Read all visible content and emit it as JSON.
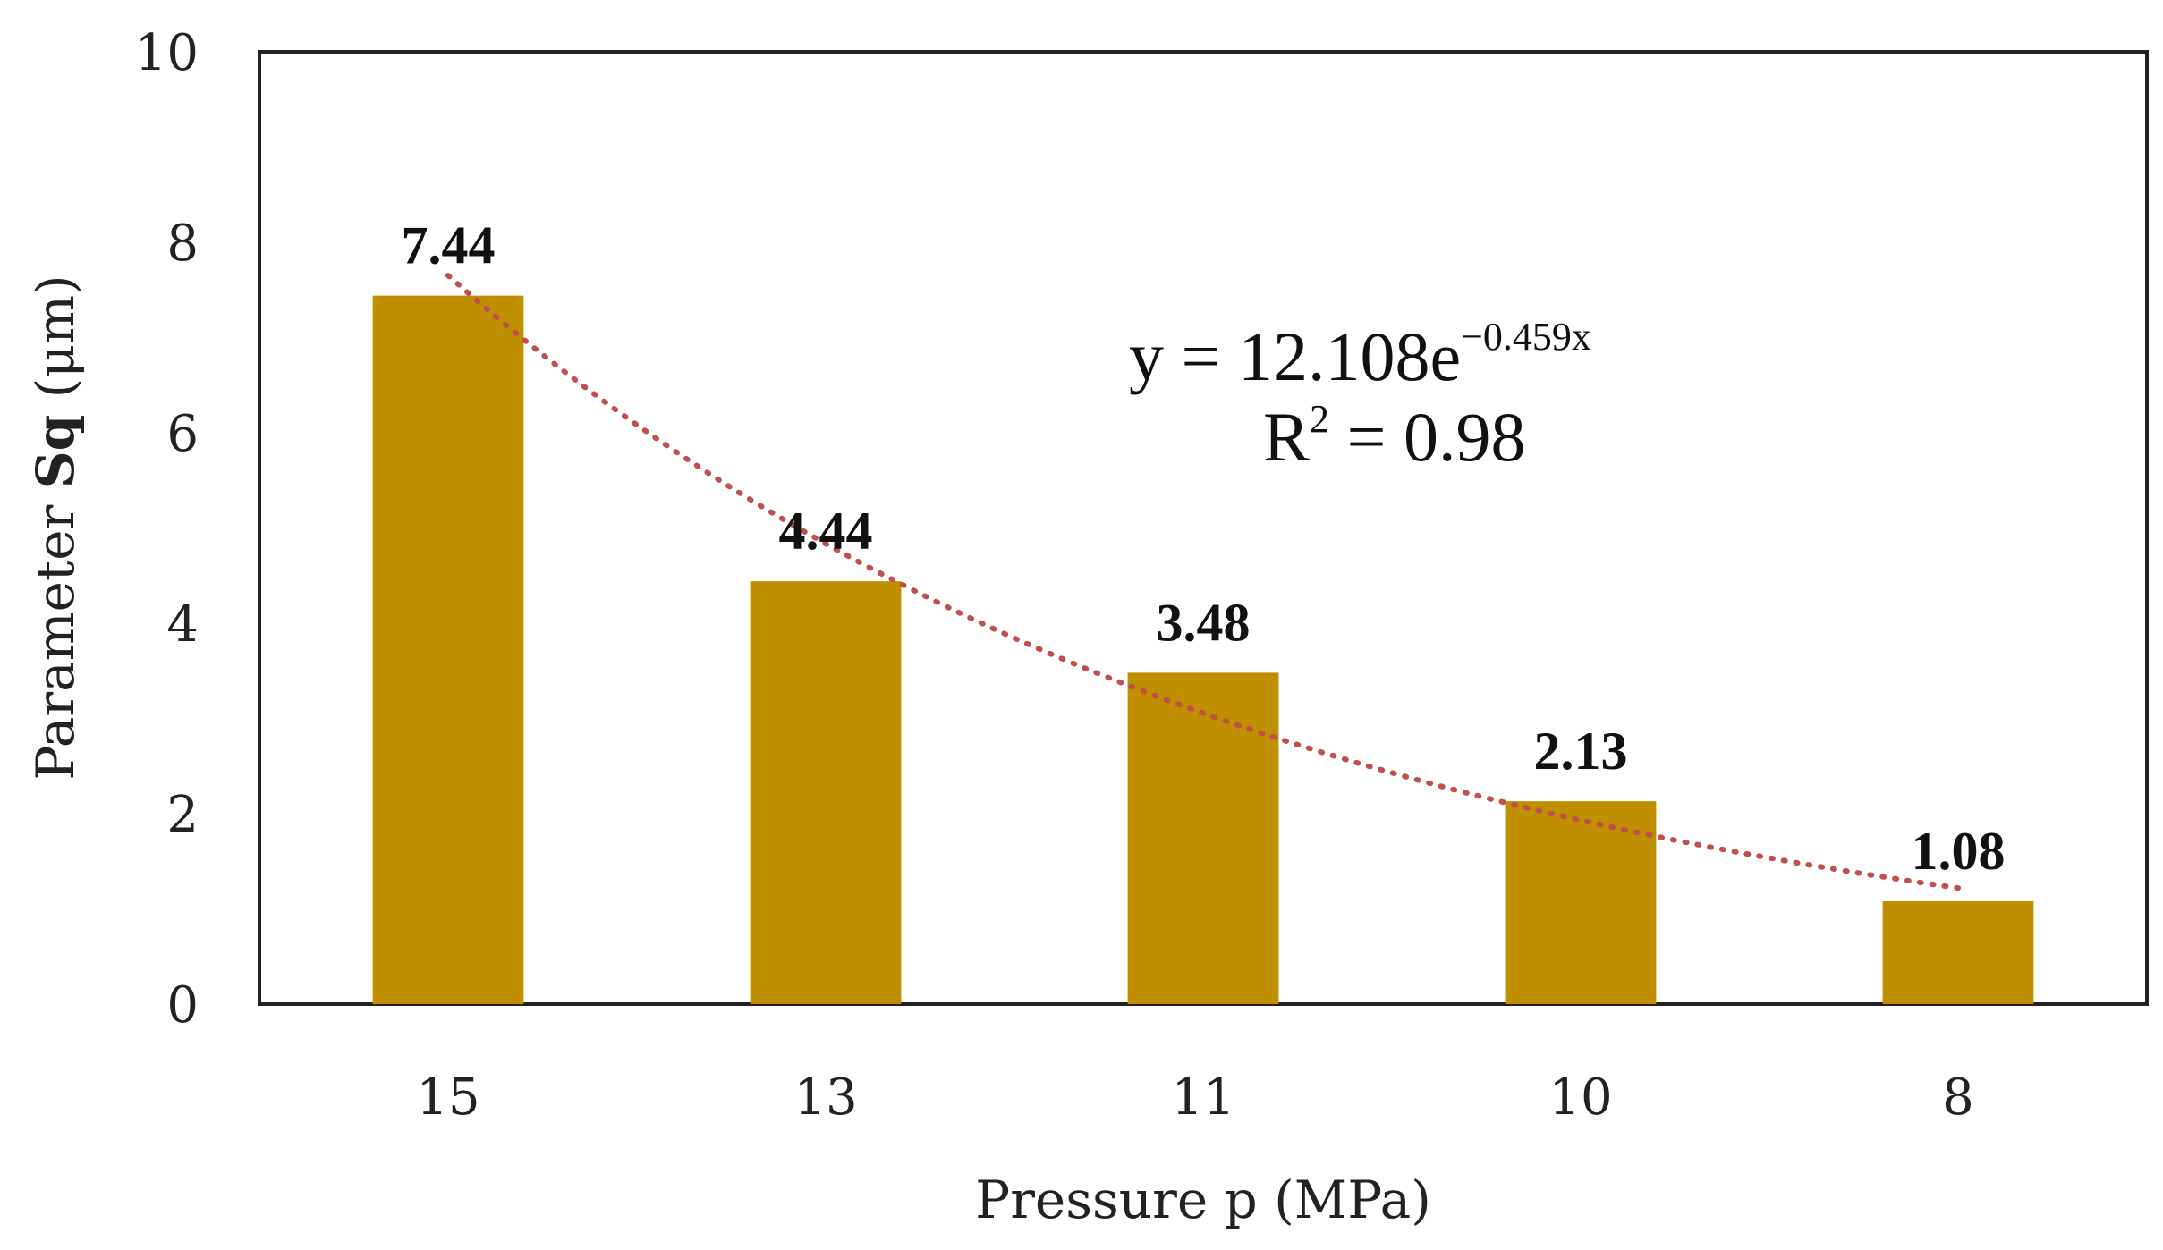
{
  "chart_data": {
    "type": "bar",
    "title": "",
    "xlabel": "Pressure p (MPa)",
    "ylabel_prefix": "Parameter ",
    "ylabel_bold": "Sq",
    "ylabel_suffix": " (μm)",
    "categories": [
      "15",
      "13",
      "11",
      "10",
      "8"
    ],
    "values": [
      7.44,
      4.44,
      3.48,
      2.13,
      1.08
    ],
    "data_labels": [
      "7.44",
      "4.44",
      "3.48",
      "2.13",
      "1.08"
    ],
    "ylim": [
      0,
      10
    ],
    "yticks": [
      0,
      2,
      4,
      6,
      8,
      10
    ],
    "ytick_labels": [
      "0",
      "2",
      "4",
      "6",
      "8",
      "10"
    ],
    "grid": false,
    "trendline": {
      "type": "exponential",
      "a": 12.108,
      "b": -0.459,
      "x_index_start": 1,
      "equation_base": "y = 12.108e",
      "equation_exponent": "−0.459x",
      "r2_base": "R",
      "r2_exponent": "2",
      "r2_value": " = 0.98"
    },
    "colors": {
      "bar": "#BF8F00",
      "trendline": "#C0504D",
      "axis": "#222222"
    }
  }
}
